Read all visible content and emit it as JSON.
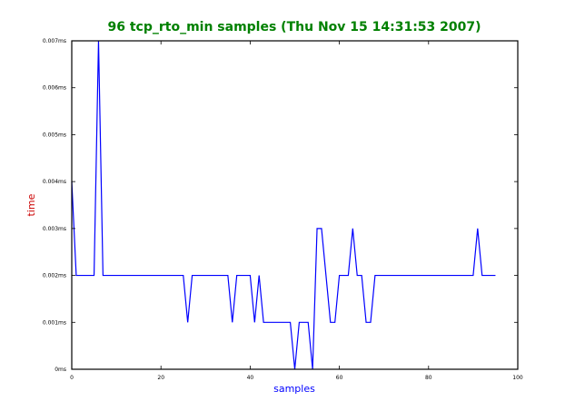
{
  "chart_data": {
    "type": "line",
    "title": "96 tcp_rto_min samples (Thu Nov 15 14:31:53 2007)",
    "xlabel": "samples",
    "ylabel": "time",
    "xlim": [
      0,
      100
    ],
    "ylim": [
      0,
      0.007
    ],
    "xticks": [
      0,
      20,
      40,
      60,
      80,
      100
    ],
    "xtick_labels": [
      "0",
      "20",
      "40",
      "60",
      "80",
      "100"
    ],
    "yticks": [
      0,
      0.001,
      0.002,
      0.003,
      0.004,
      0.005,
      0.006,
      0.007
    ],
    "ytick_labels": [
      "0ms",
      "0.001ms",
      "0.002ms",
      "0.003ms",
      "0.004ms",
      "0.005ms",
      "0.006ms",
      "0.007ms"
    ],
    "grid": false,
    "colors": {
      "line": "#0000ff",
      "title": "#008000",
      "xlabel": "#0000ff",
      "ylabel": "#cc0000"
    },
    "series": [
      {
        "values": [
          0.004,
          0.002,
          0.002,
          0.002,
          0.002,
          0.002,
          0.007,
          0.002,
          0.002,
          0.002,
          0.002,
          0.002,
          0.002,
          0.002,
          0.002,
          0.002,
          0.002,
          0.002,
          0.002,
          0.002,
          0.002,
          0.002,
          0.002,
          0.002,
          0.002,
          0.002,
          0.001,
          0.002,
          0.002,
          0.002,
          0.002,
          0.002,
          0.002,
          0.002,
          0.002,
          0.002,
          0.001,
          0.002,
          0.002,
          0.002,
          0.002,
          0.001,
          0.002,
          0.001,
          0.001,
          0.001,
          0.001,
          0.001,
          0.001,
          0.001,
          0,
          0.001,
          0.001,
          0.001,
          0,
          0.003,
          0.003,
          0.002,
          0.001,
          0.001,
          0.002,
          0.002,
          0.002,
          0.003,
          0.002,
          0.002,
          0.001,
          0.001,
          0.002,
          0.002,
          0.002,
          0.002,
          0.002,
          0.002,
          0.002,
          0.002,
          0.002,
          0.002,
          0.002,
          0.002,
          0.002,
          0.002,
          0.002,
          0.002,
          0.002,
          0.002,
          0.002,
          0.002,
          0.002,
          0.002,
          0.002,
          0.003,
          0.002,
          0.002,
          0.002,
          0.002
        ]
      }
    ]
  }
}
